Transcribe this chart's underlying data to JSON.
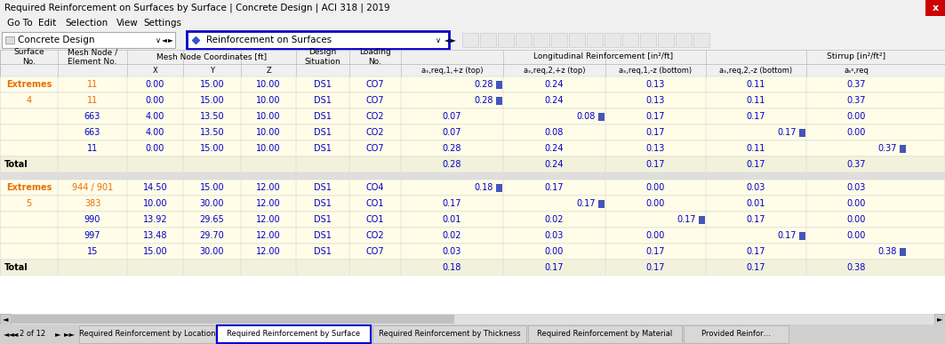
{
  "title": "Required Reinforcement on Surfaces by Surface | Concrete Design | ACI 318 | 2019",
  "toolbar_label": "Concrete Design",
  "dropdown_label": "Reinforcement on Surfaces",
  "tab_active": "Required Reinforcement by Surface",
  "tabs": [
    "Required Reinforcement by Location",
    "Required Reinforcement by Surface",
    "Required Reinforcement by Thickness",
    "Required Reinforcement by Material",
    "Provided Reinfor…"
  ],
  "nav_text": "2 of 12",
  "color_orange": "#E87000",
  "color_blue": "#0000CC",
  "color_darkblue": "#00008B",
  "bg_header": "#f0f0f0",
  "bg_yellow": "#FFFFF0",
  "bg_ext": "#FFFDE0",
  "bg_total": "#F0F0DC",
  "bg_sep": "#D8D8D8",
  "bg_white": "#FFFFFF",
  "surface4": {
    "extremes": {
      "mesh": "11",
      "x": "0.00",
      "y": "15.00",
      "z": "10.00",
      "ds": "DS1",
      "load": "CO7",
      "v1": "0.28",
      "v2": "0.24",
      "v3": "0.13",
      "v4": "0.11",
      "v5": "0.37",
      "flag1": true,
      "flag2": false,
      "flag3": false,
      "flag4": false,
      "flag5": false
    },
    "rows": [
      {
        "surf": "4",
        "mesh": "11",
        "x": "0.00",
        "y": "15.00",
        "z": "10.00",
        "ds": "DS1",
        "load": "CO7",
        "v1": "0.28",
        "v2": "0.24",
        "v3": "0.13",
        "v4": "0.11",
        "v5": "0.37",
        "flag1": true,
        "flag2": false,
        "flag3": false,
        "flag4": false,
        "flag5": false
      },
      {
        "surf": "",
        "mesh": "663",
        "x": "4.00",
        "y": "13.50",
        "z": "10.00",
        "ds": "DS1",
        "load": "CO2",
        "v1": "0.07",
        "v2": "0.08",
        "v3": "0.17",
        "v4": "0.17",
        "v5": "0.00",
        "flag1": false,
        "flag2": true,
        "flag3": false,
        "flag4": false,
        "flag5": false
      },
      {
        "surf": "",
        "mesh": "663",
        "x": "4.00",
        "y": "13.50",
        "z": "10.00",
        "ds": "DS1",
        "load": "CO2",
        "v1": "0.07",
        "v2": "0.08",
        "v3": "0.17",
        "v4": "0.17",
        "v5": "0.00",
        "flag1": false,
        "flag2": false,
        "flag3": false,
        "flag4": true,
        "flag5": false
      },
      {
        "surf": "",
        "mesh": "11",
        "x": "0.00",
        "y": "15.00",
        "z": "10.00",
        "ds": "DS1",
        "load": "CO7",
        "v1": "0.28",
        "v2": "0.24",
        "v3": "0.13",
        "v4": "0.11",
        "v5": "0.37",
        "flag1": false,
        "flag2": false,
        "flag3": false,
        "flag4": false,
        "flag5": true
      }
    ],
    "total": {
      "v1": "0.28",
      "v2": "0.24",
      "v3": "0.17",
      "v4": "0.17",
      "v5": "0.37"
    }
  },
  "surface5": {
    "extremes": {
      "mesh": "944 / 901",
      "x": "14.50",
      "y": "15.00",
      "z": "12.00",
      "ds": "DS1",
      "load": "CO4",
      "v1": "0.18",
      "v2": "0.17",
      "v3": "0.00",
      "v4": "0.03",
      "v5": "0.03",
      "flag1": true,
      "flag2": false,
      "flag3": false,
      "flag4": false,
      "flag5": false
    },
    "rows": [
      {
        "surf": "5",
        "mesh": "383",
        "x": "10.00",
        "y": "30.00",
        "z": "12.00",
        "ds": "DS1",
        "load": "CO1",
        "v1": "0.17",
        "v2": "0.17",
        "v3": "0.00",
        "v4": "0.01",
        "v5": "0.00",
        "flag1": false,
        "flag2": true,
        "flag3": false,
        "flag4": false,
        "flag5": false
      },
      {
        "surf": "",
        "mesh": "990",
        "x": "13.92",
        "y": "29.65",
        "z": "12.00",
        "ds": "DS1",
        "load": "CO1",
        "v1": "0.01",
        "v2": "0.02",
        "v3": "0.17",
        "v4": "0.17",
        "v5": "0.00",
        "flag1": false,
        "flag2": false,
        "flag3": true,
        "flag4": false,
        "flag5": false
      },
      {
        "surf": "",
        "mesh": "997",
        "x": "13.48",
        "y": "29.70",
        "z": "12.00",
        "ds": "DS1",
        "load": "CO2",
        "v1": "0.02",
        "v2": "0.03",
        "v3": "0.00",
        "v4": "0.17",
        "v5": "0.00",
        "flag1": false,
        "flag2": false,
        "flag3": false,
        "flag4": true,
        "flag5": false
      },
      {
        "surf": "",
        "mesh": "15",
        "x": "15.00",
        "y": "30.00",
        "z": "12.00",
        "ds": "DS1",
        "load": "CO7",
        "v1": "0.03",
        "v2": "0.00",
        "v3": "0.17",
        "v4": "0.17",
        "v5": "0.38",
        "flag1": false,
        "flag2": false,
        "flag3": false,
        "flag4": false,
        "flag5": true
      }
    ],
    "total": {
      "v1": "0.18",
      "v2": "0.17",
      "v3": "0.17",
      "v4": "0.17",
      "v5": "0.38"
    }
  }
}
